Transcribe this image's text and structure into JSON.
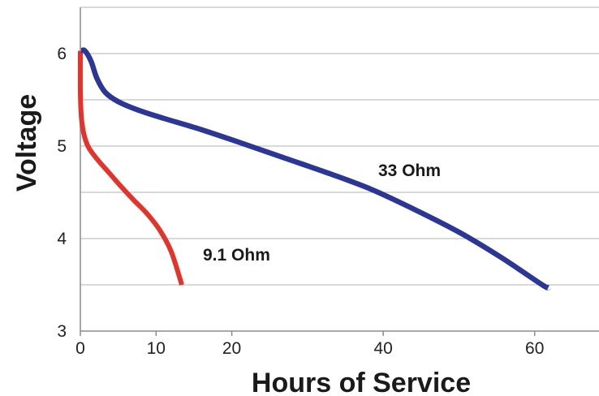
{
  "chart_data": {
    "type": "line",
    "title": "",
    "xlabel": "Hours of Service",
    "ylabel": "Voltage",
    "xlim": [
      0,
      68.5
    ],
    "ylim": [
      3,
      6.5
    ],
    "xticks": [
      0,
      10,
      20,
      40,
      60
    ],
    "xtick_labels": [
      "0",
      "10",
      "20",
      "40",
      "60"
    ],
    "yticks": [
      3,
      4,
      5,
      6
    ],
    "ytick_labels": [
      "3",
      "4",
      "5",
      "6"
    ],
    "gridlines_y": [
      3.5,
      4,
      4.5,
      5,
      5.5,
      6,
      6.5
    ],
    "grid": "horizontal",
    "series": [
      {
        "name": "9.1 Ohm",
        "color": "#e3342b",
        "x": [
          0,
          0,
          0.1,
          0.3,
          0.7,
          1.2,
          2.3,
          3.7,
          5.3,
          7.0,
          8.8,
          10.5,
          12.0,
          13.4
        ],
        "y": [
          6.03,
          5.6,
          5.35,
          5.2,
          5.06,
          4.97,
          4.85,
          4.72,
          4.57,
          4.42,
          4.27,
          4.09,
          3.86,
          3.5
        ]
      },
      {
        "name": "33 Ohm",
        "color": "#2c3695",
        "x": [
          0.1,
          0.6,
          1.4,
          2.2,
          3.3,
          5.0,
          7.6,
          11.0,
          15.5,
          21.0,
          27.0,
          33.0,
          38.5,
          44.0,
          50.0,
          55.5,
          61.0,
          61.8
        ],
        "y": [
          6.03,
          6.03,
          5.92,
          5.73,
          5.58,
          5.48,
          5.39,
          5.3,
          5.19,
          5.04,
          4.87,
          4.7,
          4.53,
          4.32,
          4.07,
          3.8,
          3.5,
          3.47
        ]
      }
    ]
  }
}
